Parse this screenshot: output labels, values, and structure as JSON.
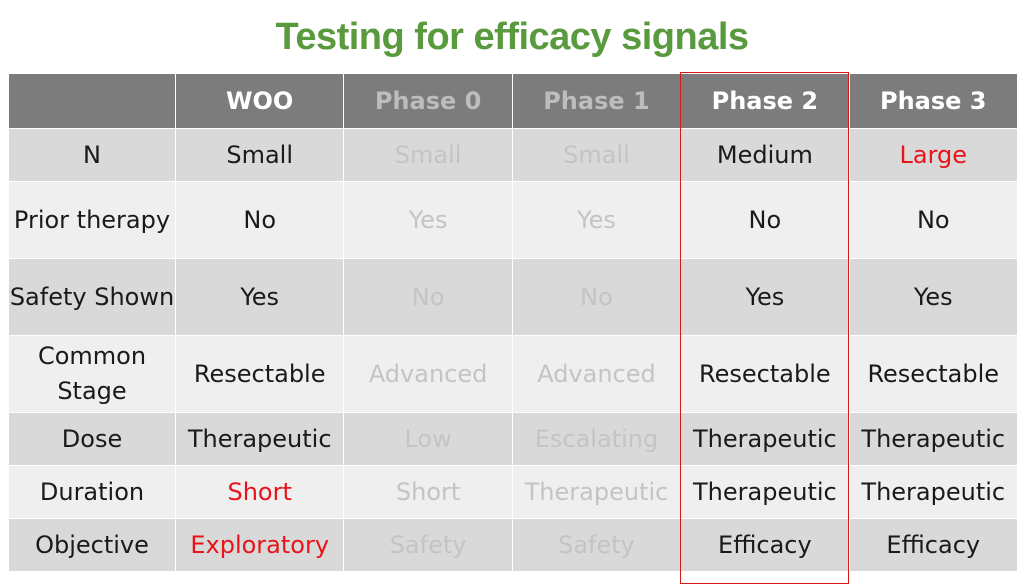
{
  "title": "Testing for efficacy signals",
  "colors": {
    "title": "#5a9a3e",
    "header_bg": "#7c7c7c",
    "row_dark": "#d9d9d9",
    "row_light": "#efefef",
    "dim_text": "#c4c4c4",
    "red_text": "#e8141a",
    "highlight_border": "#d31a1a"
  },
  "table": {
    "headers": [
      "",
      "WOO",
      "Phase 0",
      "Phase 1",
      "Phase 2",
      "Phase 3"
    ],
    "highlighted_column": "Phase 2",
    "rows": [
      {
        "label": "N",
        "cells": [
          "Small",
          "Small",
          "Small",
          "Medium",
          "Large"
        ]
      },
      {
        "label": "Prior therapy",
        "cells": [
          "No",
          "Yes",
          "Yes",
          "No",
          "No"
        ]
      },
      {
        "label": "Safety Shown",
        "cells": [
          "Yes",
          "No",
          "No",
          "Yes",
          "Yes"
        ]
      },
      {
        "label": "Common Stage",
        "cells": [
          "Resectable",
          "Advanced",
          "Advanced",
          "Resectable",
          "Resectable"
        ]
      },
      {
        "label": "Dose",
        "cells": [
          "Therapeutic",
          "Low",
          "Escalating",
          "Therapeutic",
          "Therapeutic"
        ]
      },
      {
        "label": "Duration",
        "cells": [
          "Short",
          "Short",
          "Therapeutic",
          "Therapeutic",
          "Therapeutic"
        ]
      },
      {
        "label": "Objective",
        "cells": [
          "Exploratory",
          "Safety",
          "Safety",
          "Efficacy",
          "Efficacy"
        ]
      }
    ]
  }
}
